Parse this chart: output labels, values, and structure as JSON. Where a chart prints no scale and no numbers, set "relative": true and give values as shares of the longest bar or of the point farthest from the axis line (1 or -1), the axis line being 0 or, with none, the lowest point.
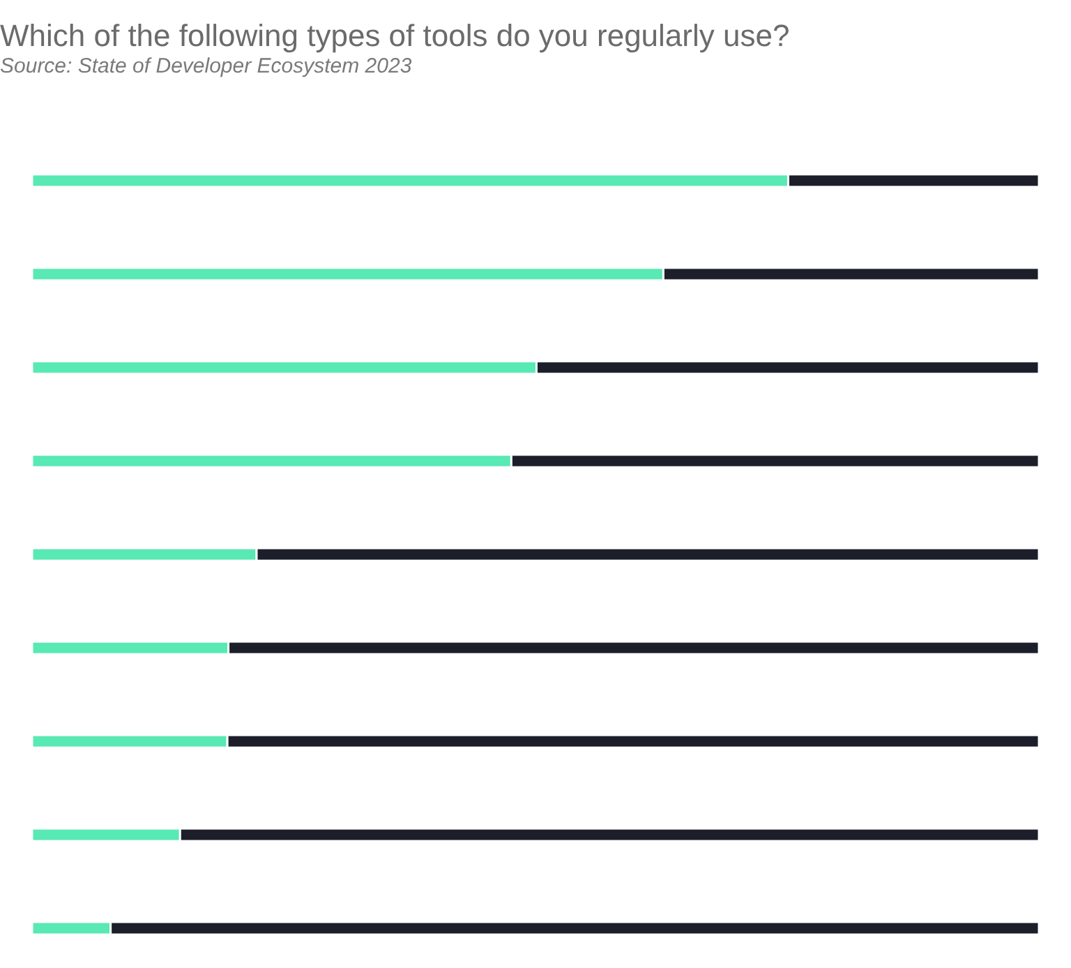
{
  "chart_data": {
    "type": "bar",
    "orientation": "horizontal",
    "stacked": true,
    "relative": true,
    "title": "Which of the following types of tools do you regularly use?",
    "annotations": [
      "Source: State of Developer Ecosystem 2023"
    ],
    "categories": [
      null,
      null,
      null,
      null,
      null,
      null,
      null,
      null,
      null
    ],
    "series": [
      {
        "color": "#58e9b4",
        "values": [
          0.751,
          0.627,
          0.501,
          0.476,
          0.223,
          0.195,
          0.194,
          0.147,
          0.078
        ]
      },
      {
        "color": "#1c1f2a",
        "values": [
          0.249,
          0.373,
          0.499,
          0.524,
          0.777,
          0.805,
          0.806,
          0.853,
          0.922
        ]
      }
    ]
  }
}
